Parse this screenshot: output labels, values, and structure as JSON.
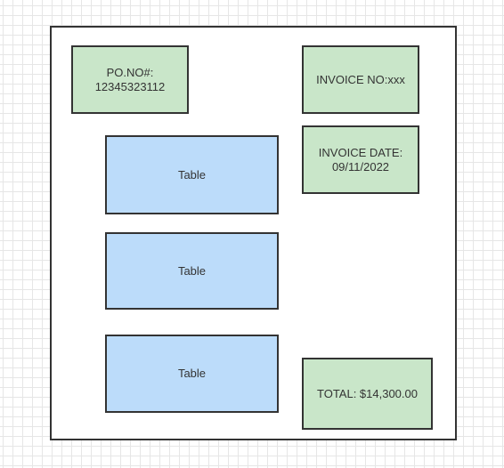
{
  "colors": {
    "green_fill": "#c9e6c9",
    "blue_fill": "#bcdcfa",
    "stroke": "#333333",
    "grid": "#e6e6e6"
  },
  "po_box": {
    "label": "PO.NO#:\n12345323112"
  },
  "invoice_no_box": {
    "label": "INVOICE NO:xxx"
  },
  "invoice_date_box": {
    "label": "INVOICE DATE:\n09/11/2022"
  },
  "tables": [
    {
      "label": "Table"
    },
    {
      "label": "Table"
    },
    {
      "label": "Table"
    }
  ],
  "total_box": {
    "label": "TOTAL: $14,300.00"
  }
}
